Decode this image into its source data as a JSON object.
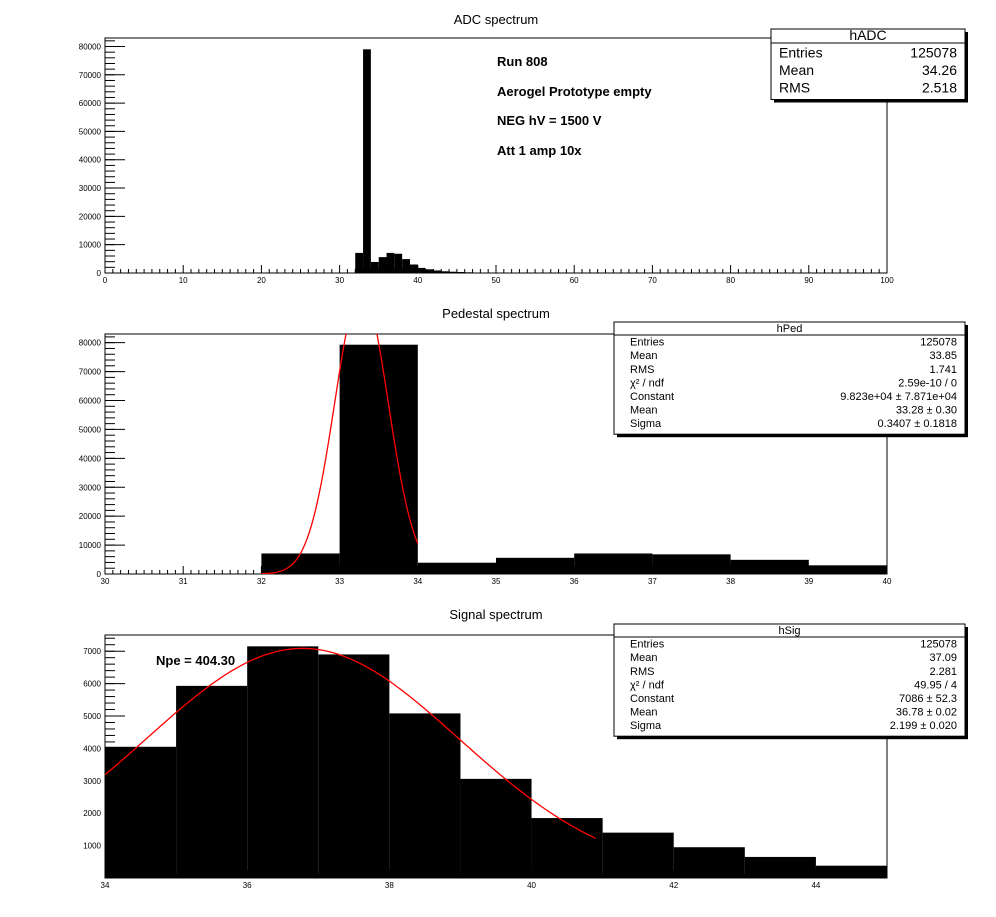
{
  "chart_data": [
    {
      "type": "bar",
      "title": "ADC spectrum",
      "xlabel": "",
      "ylabel": "",
      "xlim": [
        0,
        100
      ],
      "ylim": [
        0,
        83000
      ],
      "x_ticks": [
        0,
        10,
        20,
        30,
        40,
        50,
        60,
        70,
        80,
        90,
        100
      ],
      "y_ticks": [
        0,
        10000,
        20000,
        30000,
        40000,
        50000,
        60000,
        70000,
        80000
      ],
      "bin_width": 1,
      "bins": [
        {
          "x": 32,
          "y": 7100
        },
        {
          "x": 33,
          "y": 79000
        },
        {
          "x": 34,
          "y": 3900
        },
        {
          "x": 35,
          "y": 5600
        },
        {
          "x": 36,
          "y": 7100
        },
        {
          "x": 37,
          "y": 6800
        },
        {
          "x": 38,
          "y": 4900
        },
        {
          "x": 39,
          "y": 3000
        },
        {
          "x": 40,
          "y": 1800
        },
        {
          "x": 41,
          "y": 1300
        },
        {
          "x": 42,
          "y": 900
        },
        {
          "x": 43,
          "y": 600
        },
        {
          "x": 44,
          "y": 450
        },
        {
          "x": 45,
          "y": 350
        },
        {
          "x": 46,
          "y": 250
        },
        {
          "x": 47,
          "y": 180
        },
        {
          "x": 48,
          "y": 120
        },
        {
          "x": 49,
          "y": 80
        }
      ],
      "stats": {
        "name": "hADC",
        "rows": [
          {
            "label": "Entries",
            "value": "125078"
          },
          {
            "label": "Mean",
            "value": "34.26"
          },
          {
            "label": "RMS",
            "value": "2.518"
          }
        ]
      },
      "annotations": [
        "Run  808",
        "Aerogel Prototype empty",
        "NEG hV = 1500 V",
        "Att 1 amp 10x"
      ]
    },
    {
      "type": "bar",
      "title": "Pedestal spectrum",
      "xlabel": "",
      "ylabel": "",
      "xlim": [
        30,
        40
      ],
      "ylim": [
        0,
        83000
      ],
      "x_ticks": [
        30,
        31,
        32,
        33,
        34,
        35,
        36,
        37,
        38,
        39,
        40
      ],
      "y_ticks": [
        0,
        10000,
        20000,
        30000,
        40000,
        50000,
        60000,
        70000,
        80000
      ],
      "bin_width": 1,
      "bins": [
        {
          "x": 32,
          "y": 7100
        },
        {
          "x": 33,
          "y": 79300
        },
        {
          "x": 34,
          "y": 3900
        },
        {
          "x": 35,
          "y": 5600
        },
        {
          "x": 36,
          "y": 7100
        },
        {
          "x": 37,
          "y": 6800
        },
        {
          "x": 38,
          "y": 4900
        },
        {
          "x": 39,
          "y": 3000
        }
      ],
      "fit": {
        "type": "gaussian",
        "constant": 98230,
        "mean": 33.28,
        "sigma": 0.3407,
        "range": [
          32,
          34
        ],
        "color": "#ff0000"
      },
      "stats": {
        "name": "hPed",
        "rows": [
          {
            "label": "Entries",
            "value": "125078"
          },
          {
            "label": "Mean",
            "value": "33.85"
          },
          {
            "label": "RMS",
            "value": "1.741"
          },
          {
            "label": "χ² / ndf",
            "value": "2.59e-10 / 0"
          },
          {
            "label": "Constant",
            "value": "9.823e+04 ± 7.871e+04"
          },
          {
            "label": "Mean",
            "value": "33.28 ± 0.30"
          },
          {
            "label": "Sigma",
            "value": "0.3407 ± 0.1818"
          }
        ]
      }
    },
    {
      "type": "bar",
      "title": "Signal spectrum",
      "xlabel": "",
      "ylabel": "",
      "xlim": [
        34,
        45
      ],
      "ylim": [
        0,
        7500
      ],
      "x_ticks": [
        34,
        36,
        38,
        40,
        42,
        44
      ],
      "y_ticks": [
        1000,
        2000,
        3000,
        4000,
        5000,
        6000,
        7000
      ],
      "bin_width": 1,
      "bins": [
        {
          "x": 34,
          "y": 4050
        },
        {
          "x": 35,
          "y": 5930
        },
        {
          "x": 36,
          "y": 7150
        },
        {
          "x": 37,
          "y": 6900
        },
        {
          "x": 38,
          "y": 5080
        },
        {
          "x": 39,
          "y": 3060
        },
        {
          "x": 40,
          "y": 1850
        },
        {
          "x": 41,
          "y": 1400
        },
        {
          "x": 42,
          "y": 950
        },
        {
          "x": 43,
          "y": 650
        },
        {
          "x": 44,
          "y": 380
        }
      ],
      "fit": {
        "type": "gaussian",
        "constant": 7086,
        "mean": 36.78,
        "sigma": 2.199,
        "range": [
          34,
          40.9
        ],
        "color": "#ff0000"
      },
      "stats": {
        "name": "hSig",
        "rows": [
          {
            "label": "Entries",
            "value": "125078"
          },
          {
            "label": "Mean",
            "value": "37.09"
          },
          {
            "label": "RMS",
            "value": "2.281"
          },
          {
            "label": "χ² / ndf",
            "value": "49.95 / 4"
          },
          {
            "label": "Constant",
            "value": "7086 ± 52.3"
          },
          {
            "label": "Mean",
            "value": "36.78 ± 0.02"
          },
          {
            "label": "Sigma",
            "value": "2.199 ± 0.020"
          }
        ]
      },
      "annotations": [
        "Npe = 404.30"
      ]
    }
  ]
}
